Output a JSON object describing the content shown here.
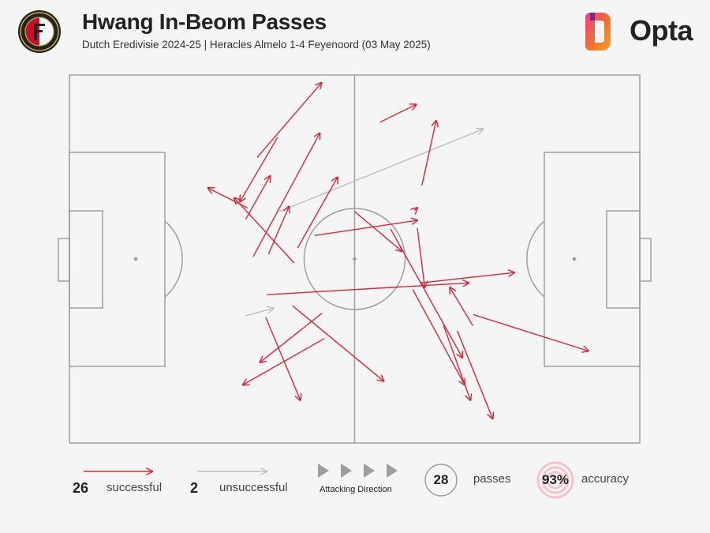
{
  "header": {
    "title": "Hwang In-Beom Passes",
    "subtitle": "Dutch Eredivisie 2024-25 | Heracles Almelo 1-4 Feyenoord (03 May 2025)",
    "brand": "Opta"
  },
  "legend": {
    "successful_count": "26",
    "successful_label": "successful",
    "unsuccessful_count": "2",
    "unsuccessful_label": "unsuccessful",
    "direction_label": "Attacking Direction",
    "passes_count": "28",
    "passes_label": "passes",
    "accuracy_value": "93%",
    "accuracy_label": "accuracy"
  },
  "colors": {
    "successful": "#d7263d",
    "unsuccessful": "#bdbdbd",
    "pitch_lines": "#9e9e9e",
    "background": "#f5f5f5"
  },
  "chart_data": {
    "type": "scatter",
    "x_range": [
      0,
      100
    ],
    "y_range": [
      0,
      100
    ],
    "attacking_direction": "left-to-right",
    "passes": [
      {
        "x1": 32.2,
        "y1": 50.6,
        "x2": 43.9,
        "y2": 84.2,
        "outcome": "successful"
      },
      {
        "x1": 30.9,
        "y1": 60.8,
        "x2": 35.2,
        "y2": 72.6,
        "outcome": "successful"
      },
      {
        "x1": 31.2,
        "y1": 63.9,
        "x2": 24.3,
        "y2": 69.3,
        "outcome": "successful"
      },
      {
        "x1": 36.5,
        "y1": 83.1,
        "x2": 29.9,
        "y2": 65.6,
        "outcome": "successful"
      },
      {
        "x1": 39.4,
        "y1": 48.9,
        "x2": 28.9,
        "y2": 66.6,
        "outcome": "successful"
      },
      {
        "x1": 34.9,
        "y1": 51.3,
        "x2": 38.5,
        "y2": 64.3,
        "outcome": "successful"
      },
      {
        "x1": 40.0,
        "y1": 53.0,
        "x2": 47.0,
        "y2": 72.2,
        "outcome": "successful"
      },
      {
        "x1": 61.8,
        "y1": 70.0,
        "x2": 64.3,
        "y2": 87.6,
        "outcome": "successful"
      },
      {
        "x1": 60.5,
        "y1": 63.2,
        "x2": 61.0,
        "y2": 63.9,
        "outcome": "successful"
      },
      {
        "x1": 43.0,
        "y1": 56.4,
        "x2": 61.0,
        "y2": 60.5,
        "outcome": "successful"
      },
      {
        "x1": 54.5,
        "y1": 87.2,
        "x2": 60.8,
        "y2": 92.0,
        "outcome": "successful"
      },
      {
        "x1": 32.9,
        "y1": 77.6,
        "x2": 44.2,
        "y2": 97.9,
        "outcome": "successful"
      },
      {
        "x1": 61.0,
        "y1": 58.4,
        "x2": 62.3,
        "y2": 42.3,
        "outcome": "successful"
      },
      {
        "x1": 50.0,
        "y1": 62.9,
        "x2": 58.3,
        "y2": 52.1,
        "outcome": "successful"
      },
      {
        "x1": 34.6,
        "y1": 40.3,
        "x2": 70.0,
        "y2": 43.5,
        "outcome": "successful"
      },
      {
        "x1": 61.5,
        "y1": 43.5,
        "x2": 78.0,
        "y2": 46.3,
        "outcome": "successful"
      },
      {
        "x1": 70.8,
        "y1": 34.9,
        "x2": 91.0,
        "y2": 25.0,
        "outcome": "successful"
      },
      {
        "x1": 39.1,
        "y1": 37.3,
        "x2": 55.1,
        "y2": 16.8,
        "outcome": "successful"
      },
      {
        "x1": 34.4,
        "y1": 34.2,
        "x2": 40.5,
        "y2": 11.6,
        "outcome": "successful"
      },
      {
        "x1": 44.7,
        "y1": 28.4,
        "x2": 30.4,
        "y2": 15.8,
        "outcome": "successful"
      },
      {
        "x1": 44.3,
        "y1": 35.3,
        "x2": 33.4,
        "y2": 21.9,
        "outcome": "successful"
      },
      {
        "x1": 56.3,
        "y1": 58.2,
        "x2": 68.9,
        "y2": 23.2,
        "outcome": "successful"
      },
      {
        "x1": 68.0,
        "y1": 30.5,
        "x2": 74.2,
        "y2": 6.6,
        "outcome": "successful"
      },
      {
        "x1": 65.6,
        "y1": 31.9,
        "x2": 70.3,
        "y2": 11.6,
        "outcome": "successful"
      },
      {
        "x1": 60.2,
        "y1": 41.7,
        "x2": 69.3,
        "y2": 15.8,
        "outcome": "successful"
      },
      {
        "x1": 70.7,
        "y1": 31.9,
        "x2": 66.7,
        "y2": 42.3,
        "outcome": "successful"
      },
      {
        "x1": 36.8,
        "y1": 62.9,
        "x2": 72.5,
        "y2": 85.3,
        "outcome": "unsuccessful"
      },
      {
        "x1": 30.9,
        "y1": 34.6,
        "x2": 35.8,
        "y2": 36.6,
        "outcome": "unsuccessful"
      }
    ]
  }
}
